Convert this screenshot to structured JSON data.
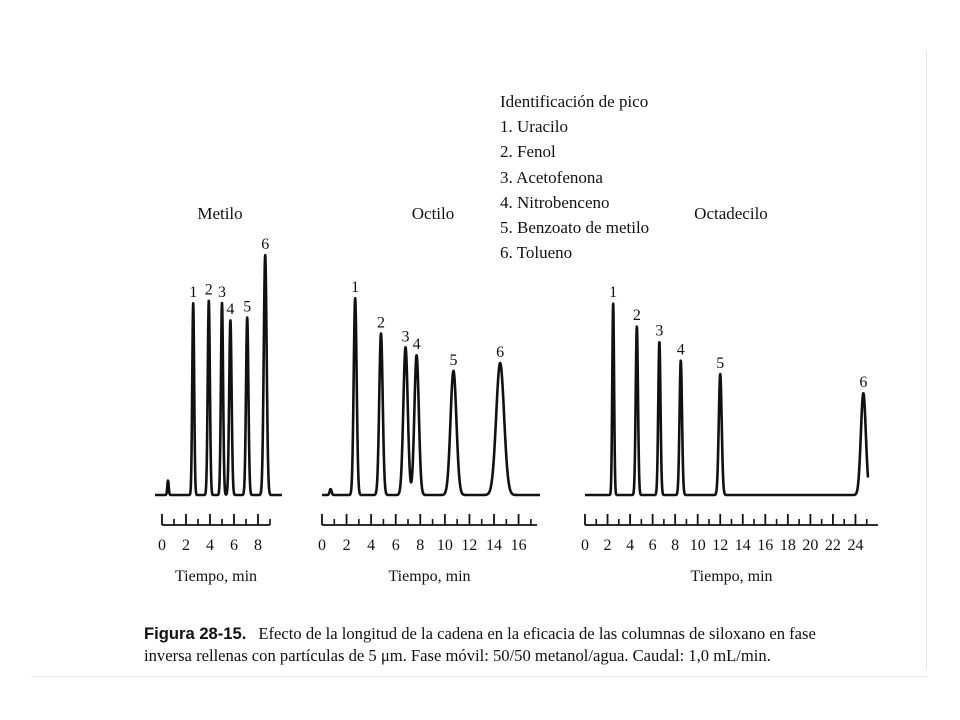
{
  "legend": {
    "title": "Identificación de pico",
    "items": [
      "1. Uracilo",
      "2. Fenol",
      "3. Acetofenona",
      "4. Nitrobenceno",
      "5. Benzoato de metilo",
      "6. Tolueno"
    ]
  },
  "caption": {
    "label": "Figura 28-15.",
    "line1": "Efecto de la longitud de la cadena en la eficacia de las columnas de siloxano en fase",
    "line2": "inversa rellenas con partículas de 5 μm. Fase móvil: 50/50 metanol/agua. Caudal: 1,0 mL/min."
  },
  "chart_data": [
    {
      "type": "line",
      "title": "Metilo",
      "xlabel": "Tiempo, min",
      "xlim": [
        0,
        9
      ],
      "xticks": [
        0,
        2,
        4,
        6,
        8
      ],
      "minor_ticks": [
        1,
        3,
        5,
        7,
        9
      ],
      "peaks": [
        {
          "label": "",
          "time": 0.5,
          "height": 0.06,
          "width": 0.06
        },
        {
          "label": "1",
          "time": 2.6,
          "height": 0.8,
          "width": 0.08
        },
        {
          "label": "2",
          "time": 3.9,
          "height": 0.81,
          "width": 0.09
        },
        {
          "label": "3",
          "time": 5.0,
          "height": 0.8,
          "width": 0.09
        },
        {
          "label": "4",
          "time": 5.7,
          "height": 0.73,
          "width": 0.1
        },
        {
          "label": "5",
          "time": 7.1,
          "height": 0.74,
          "width": 0.1
        },
        {
          "label": "6",
          "time": 8.6,
          "height": 1.0,
          "width": 0.12
        }
      ]
    },
    {
      "type": "line",
      "title": "Octilo",
      "xlabel": "Tiempo, min",
      "xlim": [
        0,
        17.5
      ],
      "xticks": [
        0,
        2,
        4,
        6,
        8,
        10,
        12,
        14,
        16
      ],
      "minor_ticks": [
        1,
        3,
        5,
        7,
        9,
        11,
        13,
        15,
        17
      ],
      "peaks": [
        {
          "label": "",
          "time": 0.7,
          "height": 0.03,
          "width": 0.08
        },
        {
          "label": "1",
          "time": 2.7,
          "height": 1.0,
          "width": 0.12
        },
        {
          "label": "2",
          "time": 4.8,
          "height": 0.82,
          "width": 0.14
        },
        {
          "label": "3",
          "time": 6.8,
          "height": 0.75,
          "width": 0.18
        },
        {
          "label": "4",
          "time": 7.7,
          "height": 0.71,
          "width": 0.18
        },
        {
          "label": "5",
          "time": 10.7,
          "height": 0.63,
          "width": 0.24
        },
        {
          "label": "6",
          "time": 14.5,
          "height": 0.67,
          "width": 0.32
        }
      ]
    },
    {
      "type": "line",
      "title": "Octadecilo",
      "xlabel": "Tiempo, min",
      "xlim": [
        0,
        26
      ],
      "xticks": [
        0,
        2,
        4,
        6,
        8,
        10,
        12,
        14,
        16,
        18,
        20,
        22,
        24
      ],
      "minor_ticks": [
        1,
        3,
        5,
        7,
        9,
        11,
        13,
        15,
        17,
        19,
        21,
        23,
        25
      ],
      "peaks": [
        {
          "label": "1",
          "time": 2.5,
          "height": 1.0,
          "width": 0.08
        },
        {
          "label": "2",
          "time": 4.6,
          "height": 0.88,
          "width": 0.1
        },
        {
          "label": "3",
          "time": 6.6,
          "height": 0.8,
          "width": 0.1
        },
        {
          "label": "4",
          "time": 8.5,
          "height": 0.7,
          "width": 0.11
        },
        {
          "label": "5",
          "time": 12.0,
          "height": 0.63,
          "width": 0.13
        },
        {
          "label": "6",
          "time": 24.7,
          "height": 0.53,
          "width": 0.22
        }
      ]
    }
  ]
}
